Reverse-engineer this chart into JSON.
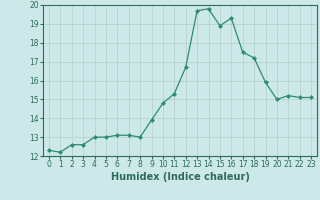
{
  "x": [
    0,
    1,
    2,
    3,
    4,
    5,
    6,
    7,
    8,
    9,
    10,
    11,
    12,
    13,
    14,
    15,
    16,
    17,
    18,
    19,
    20,
    21,
    22,
    23
  ],
  "y": [
    12.3,
    12.2,
    12.6,
    12.6,
    13.0,
    13.0,
    13.1,
    13.1,
    13.0,
    13.9,
    14.8,
    15.3,
    16.7,
    19.7,
    19.8,
    18.9,
    19.3,
    17.5,
    17.2,
    15.9,
    15.0,
    15.2,
    15.1,
    15.1
  ],
  "line_color": "#2e8b74",
  "marker": "D",
  "marker_size": 2.0,
  "line_width": 0.9,
  "bg_color": "#cce8e8",
  "grid_color": "#b5cece",
  "xlabel": "Humidex (Indice chaleur)",
  "xlim": [
    -0.5,
    23.5
  ],
  "ylim": [
    12,
    20
  ],
  "xticks": [
    0,
    1,
    2,
    3,
    4,
    5,
    6,
    7,
    8,
    9,
    10,
    11,
    12,
    13,
    14,
    15,
    16,
    17,
    18,
    19,
    20,
    21,
    22,
    23
  ],
  "yticks": [
    12,
    13,
    14,
    15,
    16,
    17,
    18,
    19,
    20
  ],
  "tick_color": "#2e6b5e",
  "label_fontsize": 5.5,
  "xlabel_fontsize": 7.0
}
